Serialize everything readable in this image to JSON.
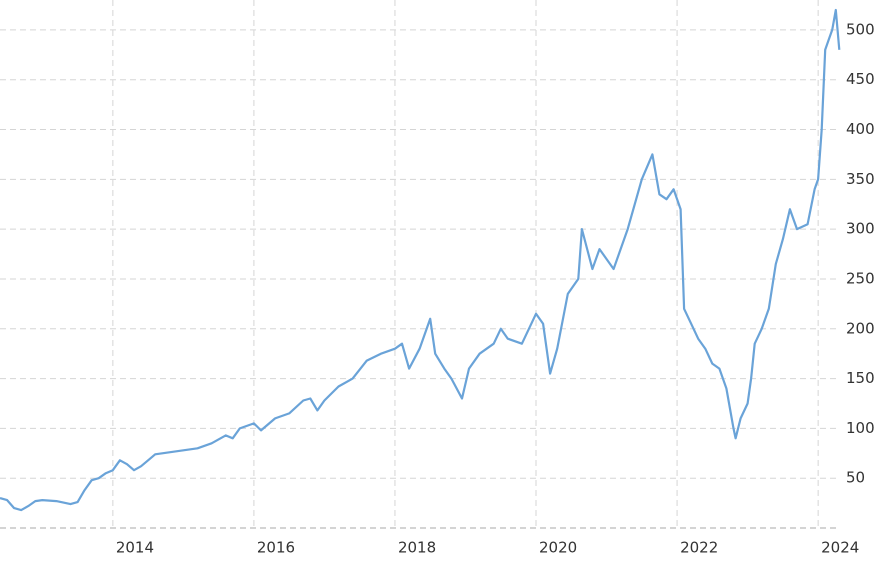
{
  "chart_data": {
    "type": "line",
    "x": [
      2012.4,
      2012.5,
      2012.6,
      2012.7,
      2012.8,
      2012.9,
      2013.0,
      2013.2,
      2013.4,
      2013.5,
      2013.6,
      2013.7,
      2013.8,
      2013.9,
      2014.0,
      2014.1,
      2014.2,
      2014.3,
      2014.4,
      2014.5,
      2014.6,
      2014.8,
      2015.0,
      2015.2,
      2015.4,
      2015.6,
      2015.7,
      2015.8,
      2016.0,
      2016.1,
      2016.3,
      2016.5,
      2016.7,
      2016.8,
      2016.9,
      2017.0,
      2017.2,
      2017.4,
      2017.6,
      2017.8,
      2018.0,
      2018.1,
      2018.2,
      2018.35,
      2018.5,
      2018.57,
      2018.7,
      2018.8,
      2018.95,
      2019.05,
      2019.2,
      2019.4,
      2019.5,
      2019.6,
      2019.8,
      2020.0,
      2020.1,
      2020.2,
      2020.3,
      2020.45,
      2020.6,
      2020.65,
      2020.8,
      2020.9,
      2021.0,
      2021.1,
      2021.3,
      2021.5,
      2021.65,
      2021.75,
      2021.85,
      2021.95,
      2022.05,
      2022.1,
      2022.2,
      2022.3,
      2022.4,
      2022.5,
      2022.6,
      2022.7,
      2022.8,
      2022.83,
      2022.9,
      2023.0,
      2023.05,
      2023.1,
      2023.2,
      2023.3,
      2023.4,
      2023.5,
      2023.6,
      2023.7,
      2023.85,
      2023.95,
      2024.0,
      2024.05,
      2024.1,
      2024.15,
      2024.2,
      2024.25,
      2024.3
    ],
    "series": [
      {
        "color": "#6aa3d8",
        "values": [
          30,
          28,
          20,
          18,
          22,
          27,
          28,
          27,
          24,
          26,
          38,
          48,
          50,
          55,
          58,
          68,
          64,
          58,
          62,
          68,
          74,
          76,
          78,
          80,
          85,
          93,
          90,
          100,
          105,
          98,
          110,
          115,
          128,
          130,
          118,
          128,
          142,
          150,
          168,
          175,
          180,
          185,
          160,
          180,
          210,
          175,
          160,
          150,
          130,
          160,
          175,
          185,
          200,
          190,
          185,
          215,
          205,
          155,
          180,
          235,
          250,
          300,
          260,
          280,
          270,
          260,
          300,
          350,
          375,
          335,
          330,
          340,
          320,
          220,
          205,
          190,
          180,
          165,
          160,
          140,
          100,
          90,
          110,
          125,
          150,
          185,
          200,
          220,
          265,
          290,
          320,
          300,
          305,
          340,
          350,
          400,
          480,
          490,
          500,
          520,
          480
        ]
      }
    ],
    "xlim": [
      2012.4,
      2024.31
    ],
    "xticks": [
      2014,
      2016,
      2018,
      2020,
      2022,
      2024
    ],
    "ylim": [
      0,
      530
    ],
    "yticks": [
      50,
      100,
      150,
      200,
      250,
      300,
      350,
      400,
      450,
      500
    ],
    "grid": true
  }
}
